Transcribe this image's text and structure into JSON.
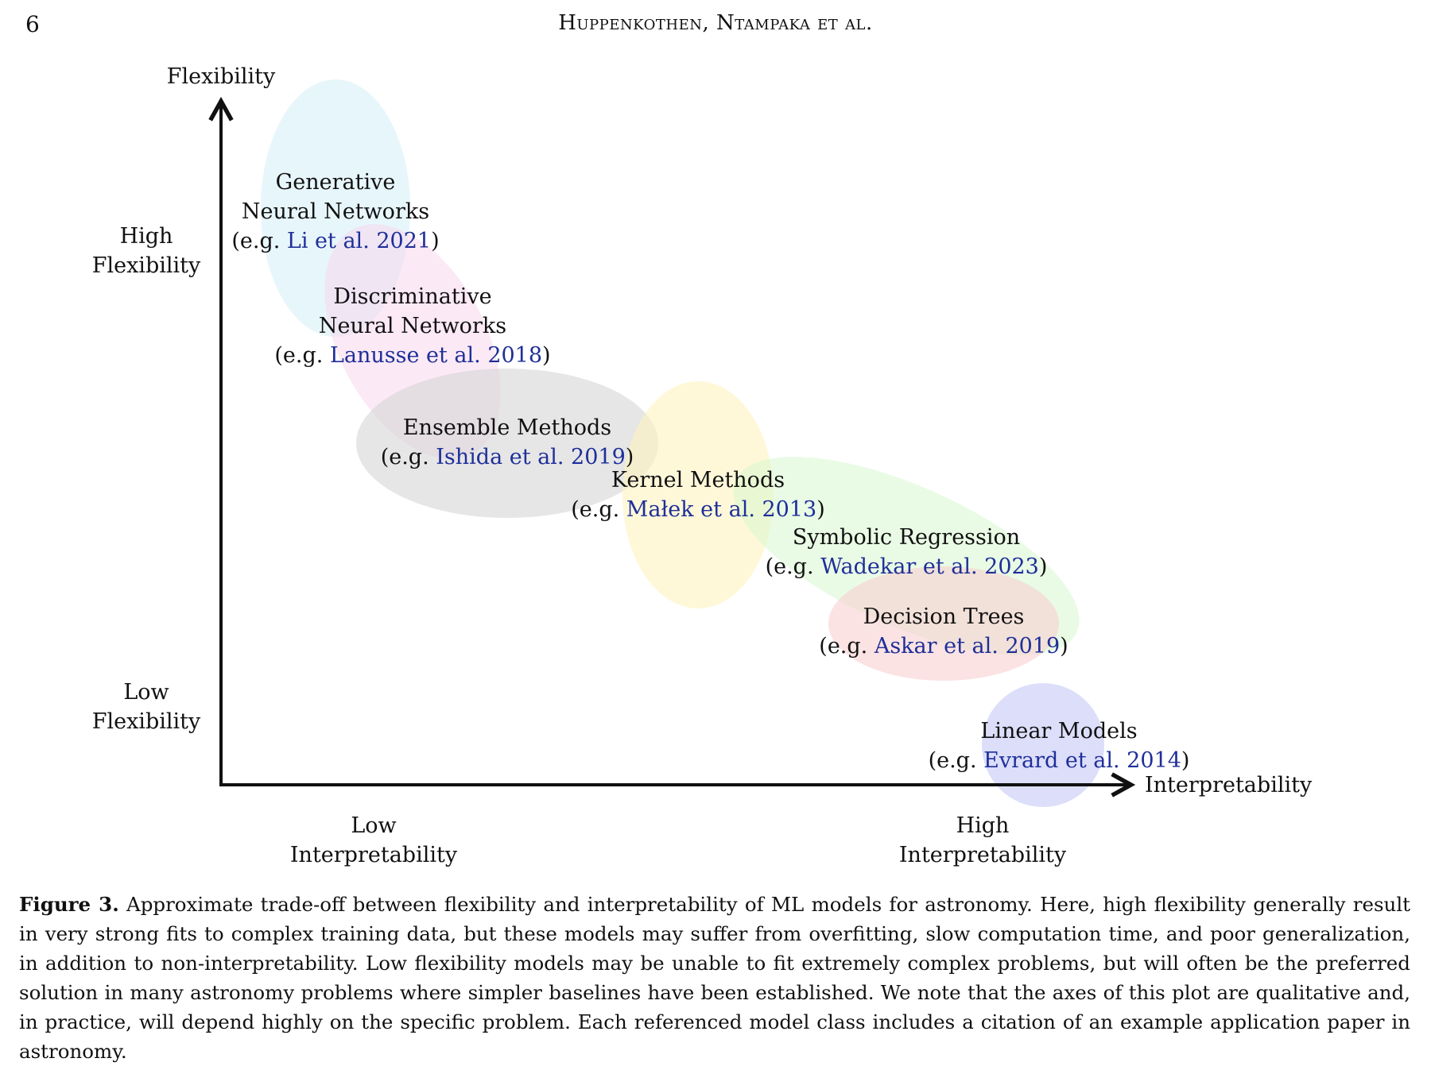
{
  "header": {
    "page_number": "6",
    "running_head": "Huppenkothen, Ntampaka et al."
  },
  "figure": {
    "y_axis_title": "Flexibility",
    "x_axis_title": "Interpretability",
    "y_high_label": [
      "High",
      "Flexibility"
    ],
    "y_low_label": [
      "Low",
      "Flexibility"
    ],
    "x_low_label": [
      "Low",
      "Interpretability"
    ],
    "x_high_label": [
      "High",
      "Interpretability"
    ],
    "model_classes": [
      {
        "name": "generative",
        "title_lines": [
          "Generative",
          "Neural Networks"
        ],
        "cite_prefix": "(e.g. ",
        "citation": "Li et al. 2021",
        "cite_suffix": ")",
        "color": "#cfeef8"
      },
      {
        "name": "discriminative",
        "title_lines": [
          "Discriminative",
          "Neural Networks"
        ],
        "cite_prefix": "(e.g. ",
        "citation": "Lanusse et al. 2018",
        "cite_suffix": ")",
        "color": "#f8d4ec"
      },
      {
        "name": "ensemble",
        "title_lines": [
          "Ensemble Methods"
        ],
        "cite_prefix": "(e.g. ",
        "citation": "Ishida et al. 2019",
        "cite_suffix": ")",
        "color": "#d6d6d6"
      },
      {
        "name": "kernel",
        "title_lines": [
          "Kernel Methods"
        ],
        "cite_prefix": "(e.g. ",
        "citation": "Małek et al. 2013",
        "cite_suffix": ")",
        "color": "#fdf4bf"
      },
      {
        "name": "symbolic",
        "title_lines": [
          "Symbolic Regression"
        ],
        "cite_prefix": "(e.g. ",
        "citation": "Wadekar et al. 2023",
        "cite_suffix": ")",
        "color": "#d4f8cc"
      },
      {
        "name": "decision-trees",
        "title_lines": [
          "Decision Trees"
        ],
        "cite_prefix": "(e.g. ",
        "citation": "Askar et al. 2019",
        "cite_suffix": ")",
        "color": "#f8d0d0"
      },
      {
        "name": "linear",
        "title_lines": [
          "Linear Models"
        ],
        "cite_prefix": "(e.g. ",
        "citation": "Evrard et al. 2014",
        "cite_suffix": ")",
        "color": "#cdd0f8"
      }
    ]
  },
  "caption": {
    "label": "Figure 3.",
    "text": "Approximate trade-off between flexibility and interpretability of ML models for astronomy. Here, high flexibility generally result in very strong fits to complex training data, but these models may suffer from overfitting, slow computation time, and poor generalization, in addition to non-interpretability. Low flexibility models may be unable to fit extremely complex problems, but will often be the preferred solution in many astronomy problems where simpler baselines have been established. We note that the axes of this plot are qualitative and, in practice, will depend highly on the specific problem. Each referenced model class includes a citation of an example application paper in astronomy."
  }
}
